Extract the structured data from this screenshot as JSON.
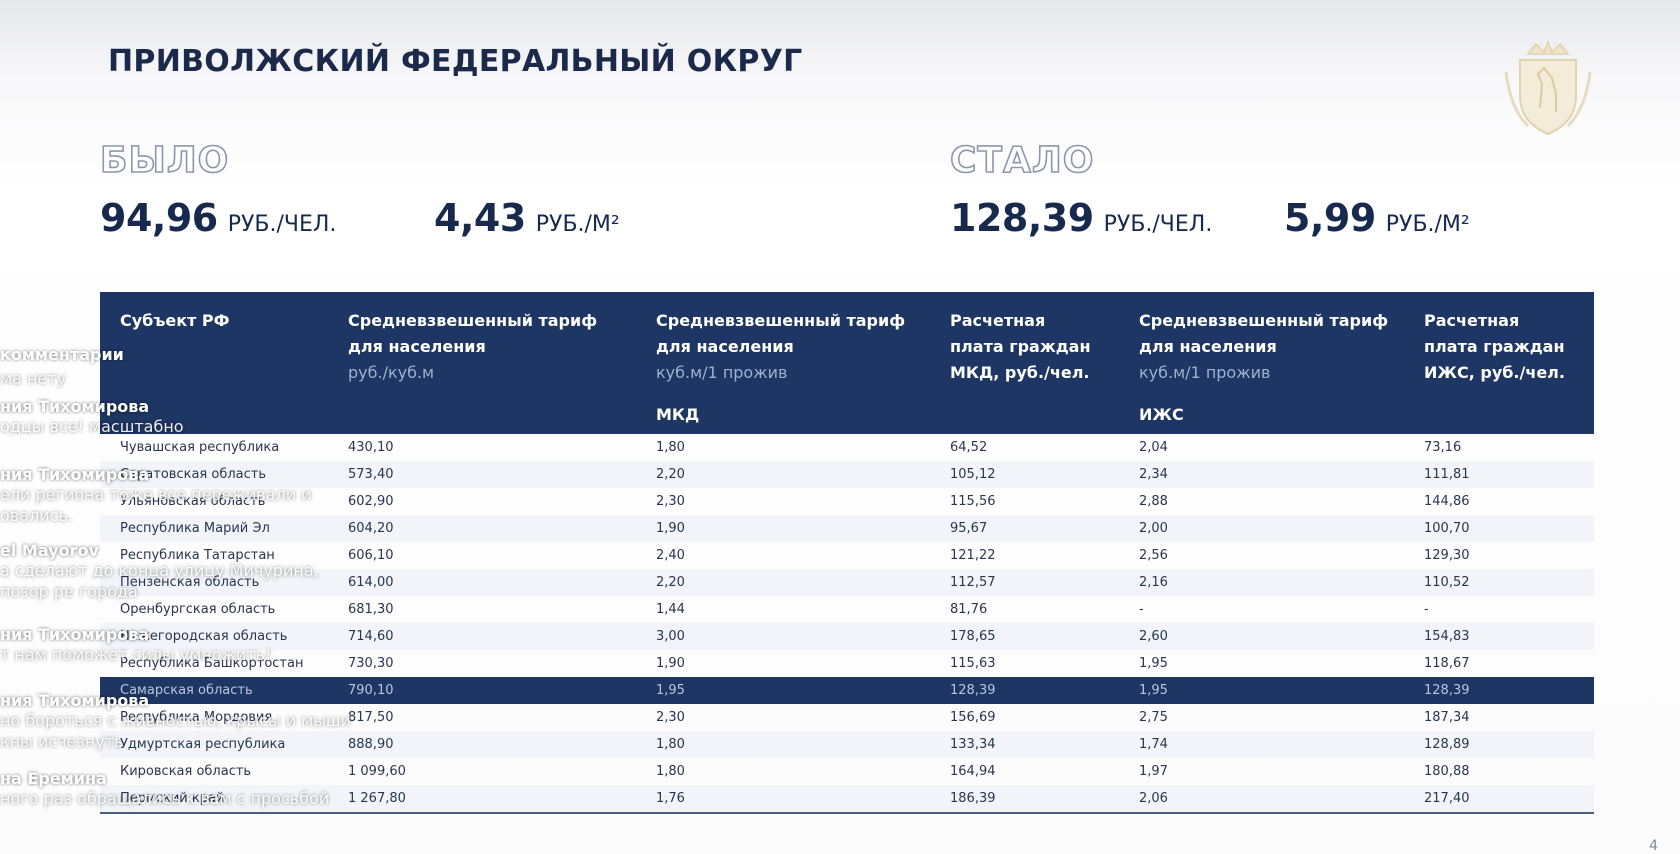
{
  "slide": {
    "title": "ПРИВОЛЖСКИЙ ФЕДЕРАЛЬНЫЙ ОКРУГ",
    "page_number": "4"
  },
  "before": {
    "label": "БЫЛО",
    "per_person_value": "94,96",
    "per_person_unit": "РУБ./ЧЕЛ.",
    "per_m2_value": "4,43",
    "per_m2_unit": "РУБ./М²"
  },
  "after": {
    "label": "СТАЛО",
    "per_person_value": "128,39",
    "per_person_unit": "РУБ./ЧЕЛ.",
    "per_m2_value": "5,99",
    "per_m2_unit": "РУБ./М²"
  },
  "table": {
    "headers": {
      "subject": "Субъект РФ",
      "tariff_title": "Средневзвешенный тариф для населения",
      "tariff_unit": "руб./куб.м",
      "norm_mkd_title": "Средневзвешенный тариф для населения",
      "norm_mkd_unit": "куб.м/1 прожив",
      "norm_mkd_tag": "МКД",
      "pay_mkd": "Расчетная плата граждан МКД, руб./чел.",
      "norm_izhs_title": "Средневзвешенный тариф для населения",
      "norm_izhs_unit": "куб.м/1 прожив",
      "norm_izhs_tag": "ИЖС",
      "pay_izhs": "Расчетная плата граждан ИЖС, руб./чел."
    },
    "rows": [
      {
        "region": "Чувашская республика",
        "tariff": "430,10",
        "norm_mkd": "1,80",
        "pay_mkd": "64,52",
        "norm_izhs": "2,04",
        "pay_izhs": "73,16"
      },
      {
        "region": "Саратовская область",
        "tariff": "573,40",
        "norm_mkd": "2,20",
        "pay_mkd": "105,12",
        "norm_izhs": "2,34",
        "pay_izhs": "111,81"
      },
      {
        "region": "Ульяновская область",
        "tariff": "602,90",
        "norm_mkd": "2,30",
        "pay_mkd": "115,56",
        "norm_izhs": "2,88",
        "pay_izhs": "144,86"
      },
      {
        "region": "Республика Марий Эл",
        "tariff": "604,20",
        "norm_mkd": "1,90",
        "pay_mkd": "95,67",
        "norm_izhs": "2,00",
        "pay_izhs": "100,70"
      },
      {
        "region": "Республика Татарстан",
        "tariff": "606,10",
        "norm_mkd": "2,40",
        "pay_mkd": "121,22",
        "norm_izhs": "2,56",
        "pay_izhs": "129,30"
      },
      {
        "region": "Пензенская область",
        "tariff": "614,00",
        "norm_mkd": "2,20",
        "pay_mkd": "112,57",
        "norm_izhs": "2,16",
        "pay_izhs": "110,52"
      },
      {
        "region": "Оренбургская область",
        "tariff": "681,30",
        "norm_mkd": "1,44",
        "pay_mkd": "81,76",
        "norm_izhs": "-",
        "pay_izhs": "-"
      },
      {
        "region": "Нижегородская область",
        "tariff": "714,60",
        "norm_mkd": "3,00",
        "pay_mkd": "178,65",
        "norm_izhs": "2,60",
        "pay_izhs": "154,83"
      },
      {
        "region": "Республика Башкортостан",
        "tariff": "730,30",
        "norm_mkd": "1,90",
        "pay_mkd": "115,63",
        "norm_izhs": "1,95",
        "pay_izhs": "118,67"
      },
      {
        "region": "Самарская область",
        "tariff": "790,10",
        "norm_mkd": "1,95",
        "pay_mkd": "128,39",
        "norm_izhs": "1,95",
        "pay_izhs": "128,39",
        "highlight": true
      },
      {
        "region": "Республика Мордовия",
        "tariff": "817,50",
        "norm_mkd": "2,30",
        "pay_mkd": "156,69",
        "norm_izhs": "2,75",
        "pay_izhs": "187,34"
      },
      {
        "region": "Удмуртская республика",
        "tariff": "888,90",
        "norm_mkd": "1,80",
        "pay_mkd": "133,34",
        "norm_izhs": "1,74",
        "pay_izhs": "128,89"
      },
      {
        "region": "Кировская область",
        "tariff": "1 099,60",
        "norm_mkd": "1,80",
        "pay_mkd": "164,94",
        "norm_izhs": "1,97",
        "pay_izhs": "180,88"
      },
      {
        "region": "Пермский край",
        "tariff": "1 267,80",
        "norm_mkd": "1,76",
        "pay_mkd": "186,39",
        "norm_izhs": "2,06",
        "pay_izhs": "217,40"
      }
    ]
  },
  "chat": {
    "heading": "комментарии",
    "subheading": "ма нету",
    "messages": [
      {
        "author": "ния Тихомирова",
        "text": "одцы все! масштабно"
      },
      {
        "author": "ния Тихомирова",
        "text": "ели региона тоже все переживали и овались."
      },
      {
        "author": "el Mayorov",
        "text": "а сделают до конца улицу Мичурина, позор ре города"
      },
      {
        "author": "ния Тихомирова",
        "text": "т нам поможет силы умножить!"
      },
      {
        "author": "ния Тихомирова",
        "text": "но бороться с живностью, крысы и мыши кны исчезнуть"
      },
      {
        "author": "на Еремина",
        "text": "ного раз обращались к вам с просьбой"
      }
    ]
  }
}
